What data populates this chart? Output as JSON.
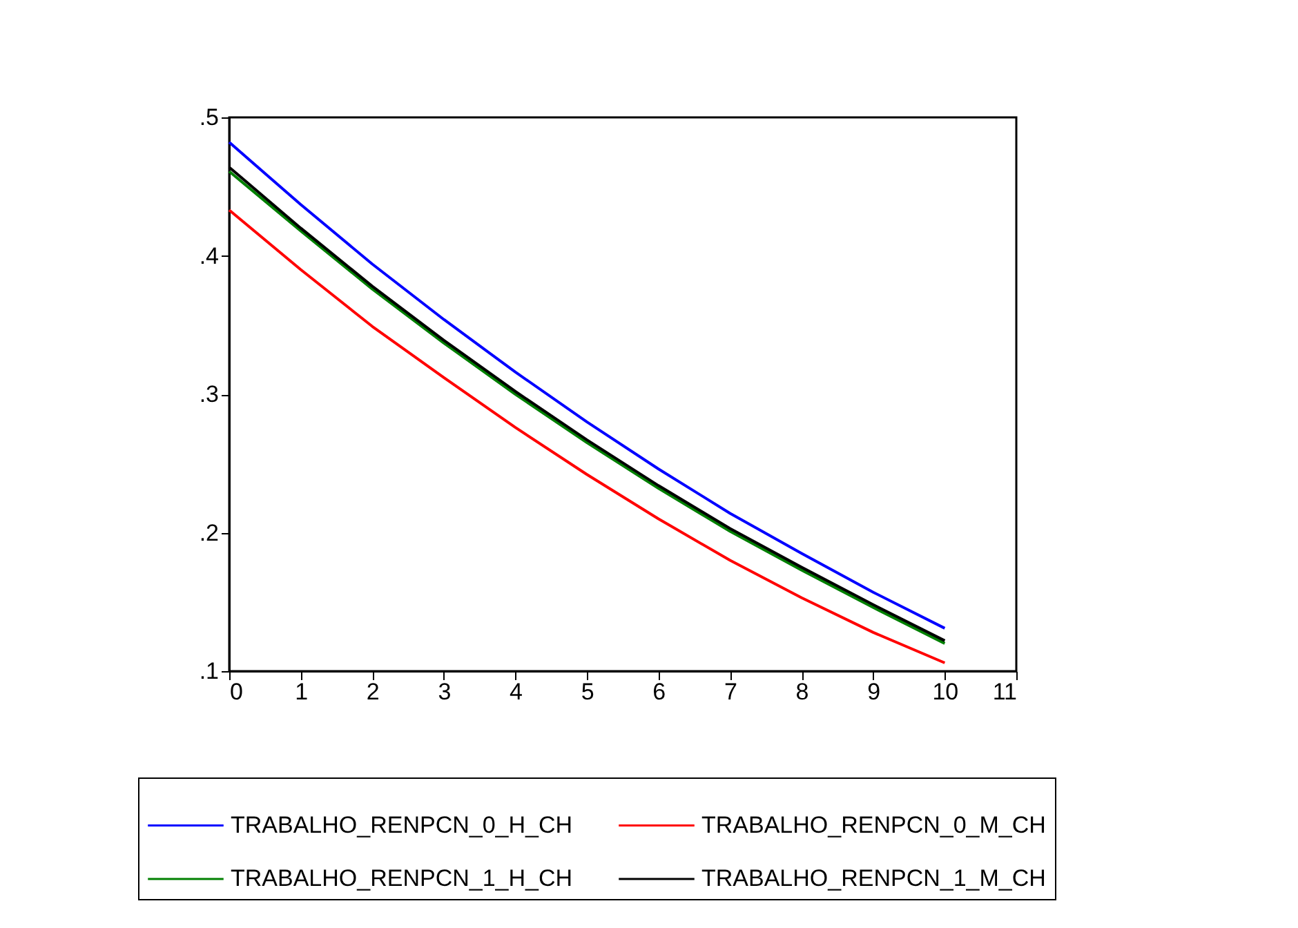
{
  "chart_data": {
    "type": "line",
    "x": [
      0,
      1,
      2,
      3,
      4,
      5,
      6,
      7,
      8,
      9,
      10
    ],
    "series": [
      {
        "name": "TRABALHO_RENPCN_0_H_CH",
        "color": "#0000ff",
        "values": [
          0.482,
          0.437,
          0.394,
          0.354,
          0.316,
          0.28,
          0.246,
          0.214,
          0.185,
          0.157,
          0.131
        ]
      },
      {
        "name": "TRABALHO_RENPCN_1_H_CH",
        "color": "#008000",
        "values": [
          0.461,
          0.418,
          0.376,
          0.337,
          0.3,
          0.265,
          0.232,
          0.201,
          0.173,
          0.146,
          0.12
        ]
      },
      {
        "name": "TRABALHO_RENPCN_0_M_CH",
        "color": "#ff0000",
        "values": [
          0.433,
          0.39,
          0.349,
          0.312,
          0.276,
          0.242,
          0.21,
          0.18,
          0.153,
          0.128,
          0.106
        ]
      },
      {
        "name": "TRABALHO_RENPCN_1_M_CH",
        "color": "#000000",
        "values": [
          0.464,
          0.42,
          0.378,
          0.339,
          0.302,
          0.267,
          0.234,
          0.203,
          0.175,
          0.148,
          0.122
        ]
      }
    ],
    "xlim": [
      0,
      11
    ],
    "xticks": [
      0,
      1,
      2,
      3,
      4,
      5,
      6,
      7,
      8,
      9,
      10,
      11
    ],
    "ylim": [
      0.1,
      0.5
    ],
    "yticks": [
      {
        "value": 0.1,
        "label": ".1"
      },
      {
        "value": 0.2,
        "label": ".2"
      },
      {
        "value": 0.3,
        "label": ".3"
      },
      {
        "value": 0.4,
        "label": ".4"
      },
      {
        "value": 0.5,
        "label": ".5"
      }
    ],
    "grid": false,
    "legend": "bottom",
    "marker": "none",
    "line_style": "solid"
  }
}
